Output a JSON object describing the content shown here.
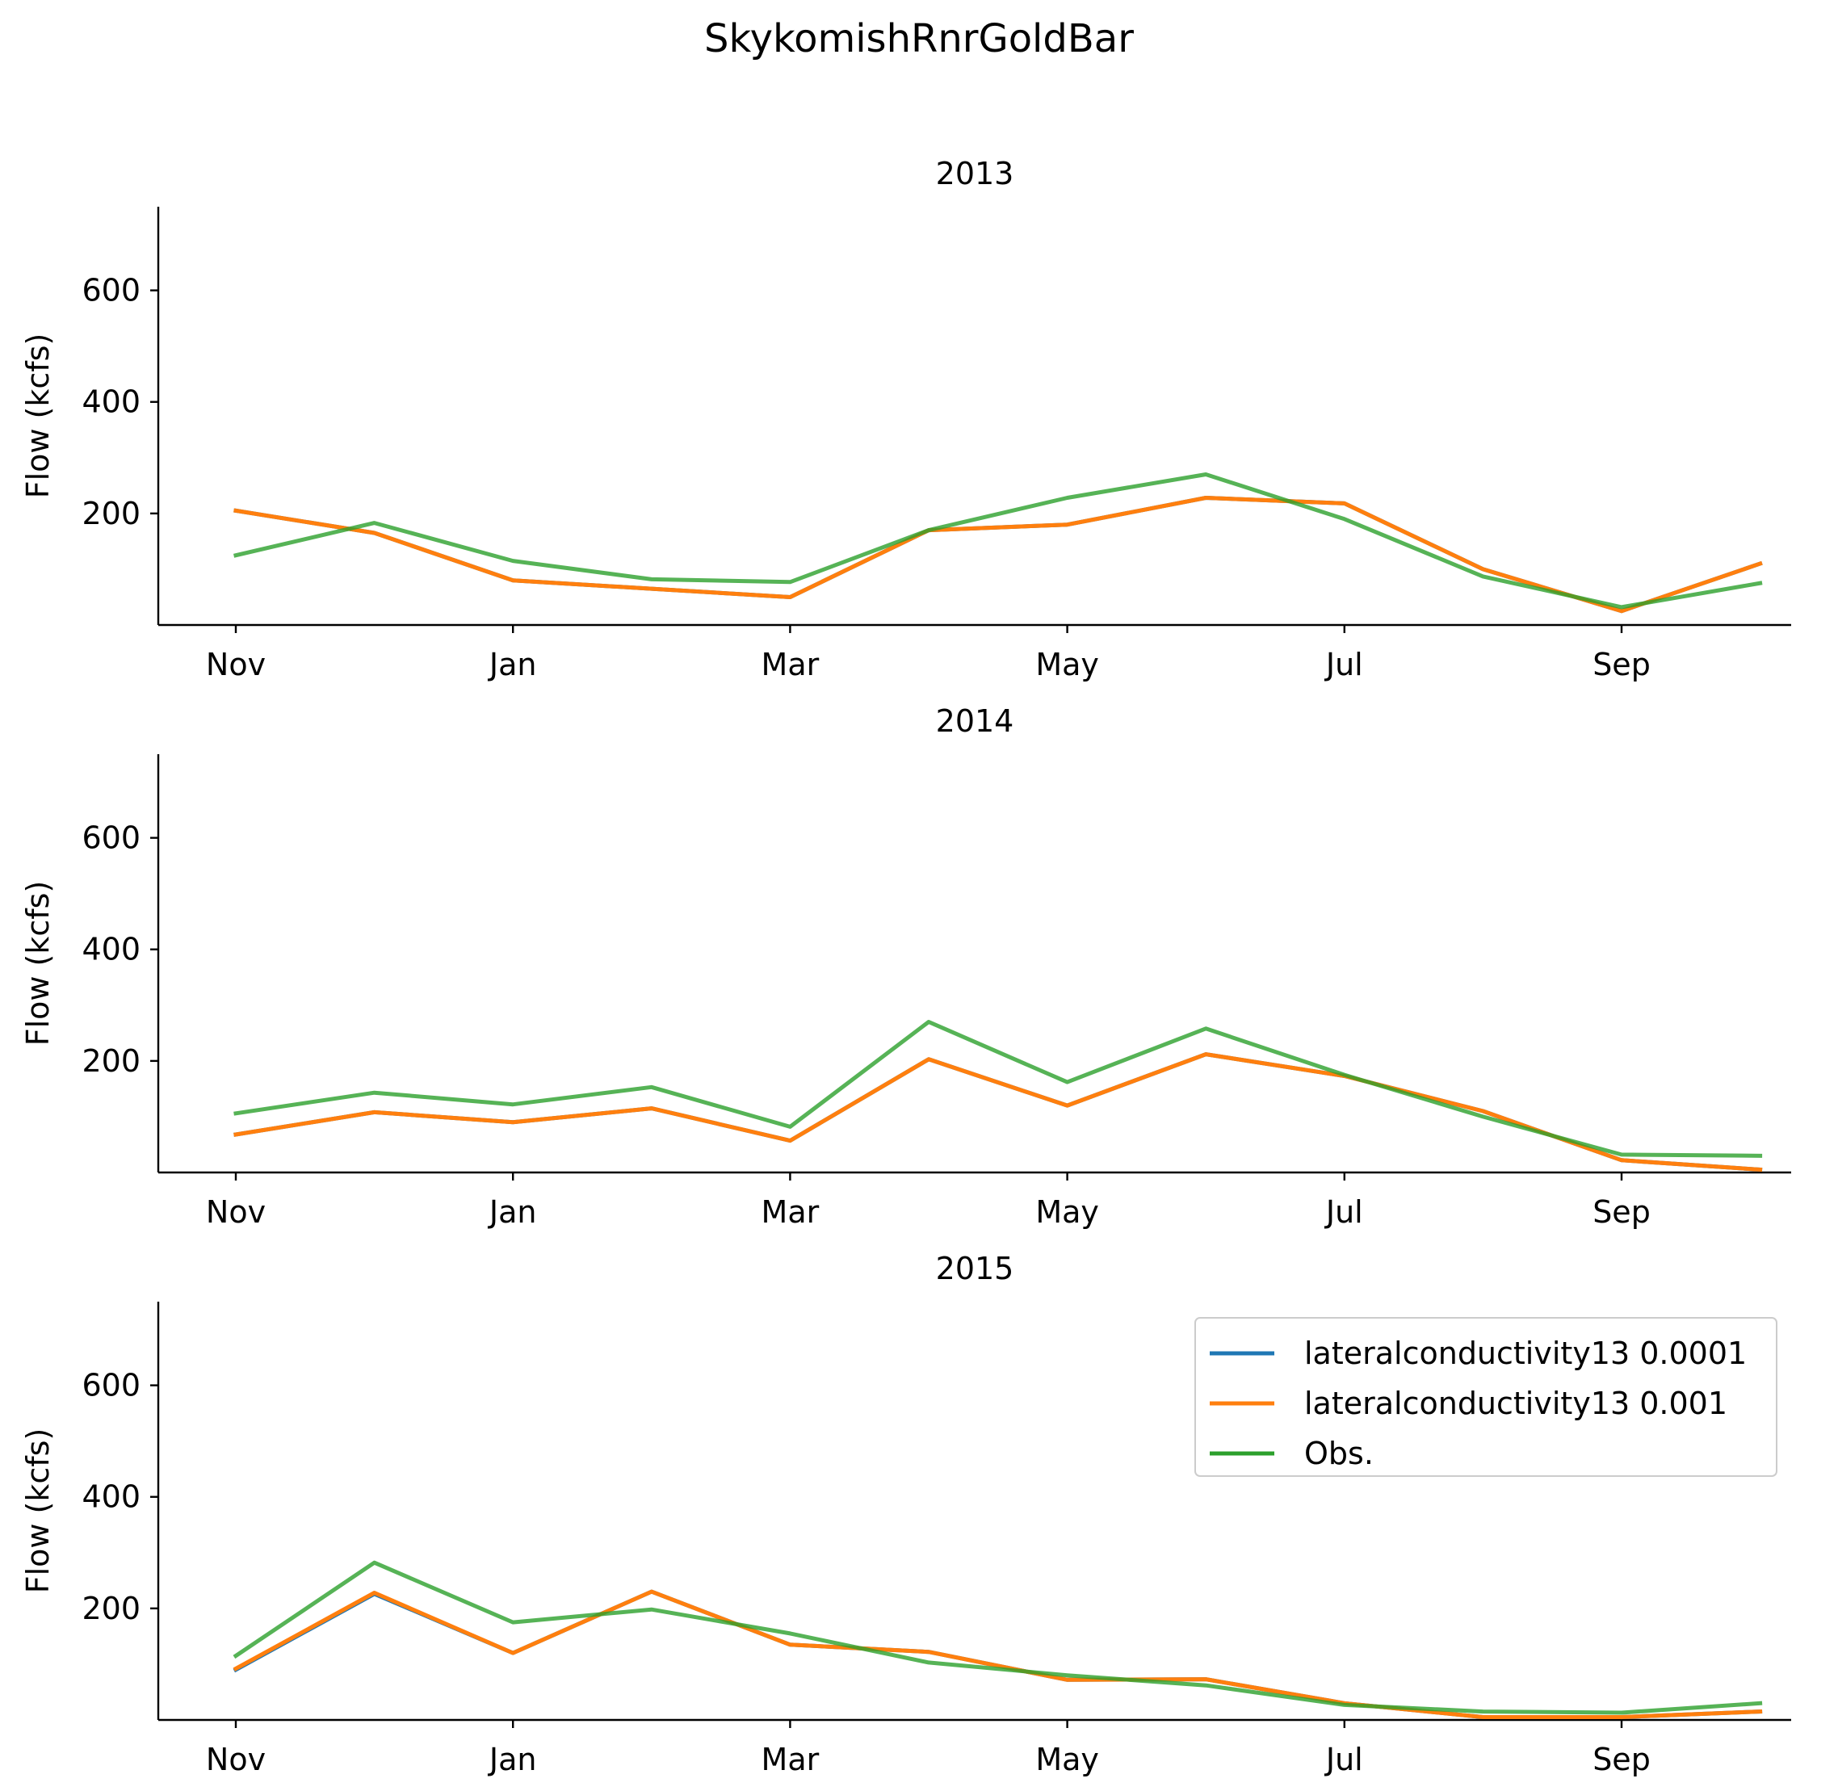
{
  "chart_data": {
    "type": "line",
    "title": "SkykomishRnrGoldBar",
    "ylabel": "Flow (kcfs)",
    "ylim": [
      0,
      750
    ],
    "yticks": [
      200,
      400,
      600
    ],
    "xtick_labels": [
      "Nov",
      "Jan",
      "Mar",
      "May",
      "Jul",
      "Sep"
    ],
    "xtick_months": [
      0,
      2,
      4,
      6,
      8,
      10
    ],
    "x_months": [
      0,
      1,
      2,
      3,
      4,
      5,
      6,
      7,
      8,
      9,
      10,
      11
    ],
    "legend_location": "upper right (2015 panel)",
    "colors": {
      "lateralconductivity13 0.0001": "#1f77b4",
      "lateralconductivity13 0.001": "#ff7f0e",
      "Obs.": "#2ca02c"
    },
    "legend": [
      "lateralconductivity13 0.0001",
      "lateralconductivity13 0.001",
      "Obs."
    ],
    "panels": [
      {
        "title": "2013",
        "show_legend": false,
        "series": [
          {
            "name": "lateralconductivity13 0.0001",
            "values": [
              205,
              165,
              80,
              65,
              50,
              170,
              180,
              228,
              218,
              100,
              25,
              110
            ]
          },
          {
            "name": "lateralconductivity13 0.001",
            "values": [
              205,
              165,
              80,
              65,
              50,
              170,
              180,
              228,
              218,
              100,
              25,
              110
            ]
          },
          {
            "name": "Obs.",
            "values": [
              125,
              183,
              115,
              82,
              77,
              170,
              228,
              270,
              190,
              87,
              32,
              75
            ]
          }
        ]
      },
      {
        "title": "2014",
        "show_legend": false,
        "series": [
          {
            "name": "lateralconductivity13 0.0001",
            "values": [
              68,
              108,
              90,
              115,
              57,
              203,
              120,
              212,
              173,
              110,
              22,
              5
            ]
          },
          {
            "name": "lateralconductivity13 0.001",
            "values": [
              68,
              108,
              90,
              115,
              57,
              203,
              120,
              212,
              173,
              110,
              22,
              5
            ]
          },
          {
            "name": "Obs.",
            "values": [
              106,
              143,
              122,
              153,
              82,
              270,
              162,
              258,
              175,
              100,
              32,
              30
            ]
          }
        ]
      },
      {
        "title": "2015",
        "show_legend": true,
        "series": [
          {
            "name": "lateralconductivity13 0.0001",
            "values": [
              90,
              226,
              120,
              230,
              135,
              122,
              72,
              73,
              30,
              5,
              5,
              15
            ]
          },
          {
            "name": "lateralconductivity13 0.001",
            "values": [
              92,
              228,
              120,
              230,
              135,
              122,
              72,
              73,
              30,
              5,
              5,
              15
            ]
          },
          {
            "name": "Obs.",
            "values": [
              115,
              282,
              175,
              198,
              155,
              103,
              80,
              62,
              27,
              15,
              13,
              30
            ]
          }
        ]
      }
    ]
  }
}
